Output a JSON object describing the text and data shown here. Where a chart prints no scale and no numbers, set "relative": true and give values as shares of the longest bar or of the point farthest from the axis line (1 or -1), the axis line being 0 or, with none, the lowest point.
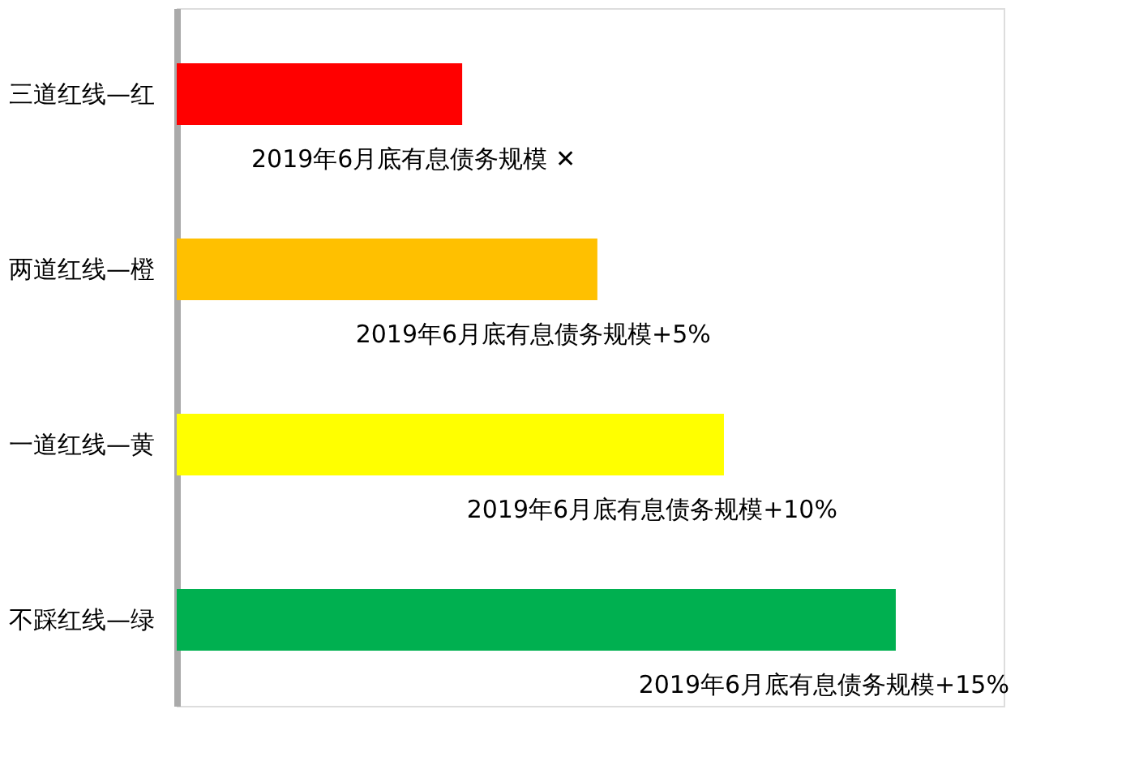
{
  "chart_data": {
    "type": "bar",
    "orientation": "horizontal",
    "relative": true,
    "categories": [
      "三道红线—红",
      "两道红线—橙",
      "一道红线—黄",
      "不踩红线—绿"
    ],
    "values": [
      0.397,
      0.585,
      0.761,
      1
    ],
    "colors": [
      "#ff0000",
      "#ffc000",
      "#ffff00",
      "#00b050"
    ],
    "annotations": [
      "2019年6月底有息债务规模 ✕",
      "2019年6月底有息债务规模+5%",
      "2019年6月底有息债务规模+10%",
      "2019年6月底有息债务规模+15%"
    ],
    "grid": false
  }
}
